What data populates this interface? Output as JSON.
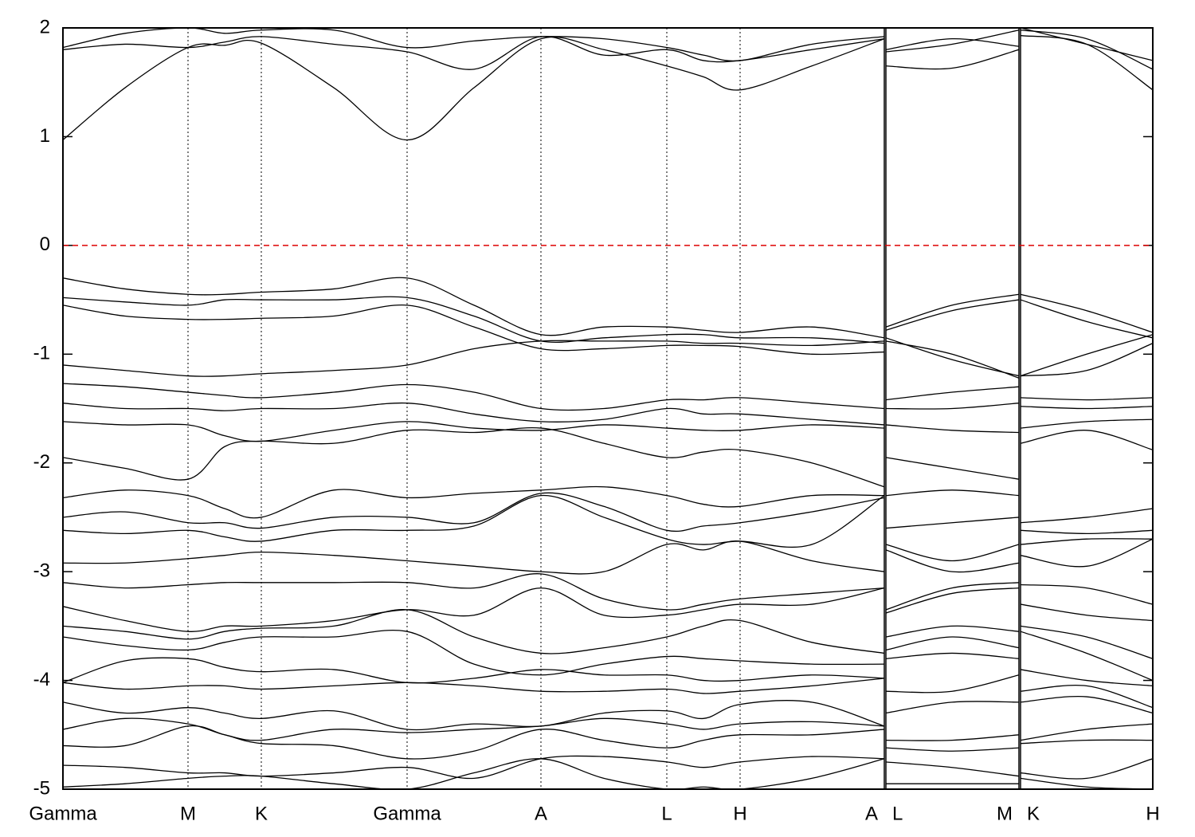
{
  "chart_data": {
    "type": "line",
    "color": "#000000",
    "fermi_line": {
      "value": 0,
      "color": "#dd0000"
    },
    "xlim": [
      0,
      1368
    ],
    "xticks": [
      {
        "value": 0,
        "label": "Gamma"
      },
      {
        "value": 157,
        "label": "M"
      },
      {
        "value": 249,
        "label": "K"
      },
      {
        "value": 432,
        "label": "Gamma"
      },
      {
        "value": 600,
        "label": "A"
      },
      {
        "value": 758,
        "label": "L"
      },
      {
        "value": 850,
        "label": "H"
      },
      {
        "value": 1031,
        "label": "A"
      },
      {
        "value": 1033,
        "label": "L"
      },
      {
        "value": 1200,
        "label": "M"
      },
      {
        "value": 1202,
        "label": "K"
      },
      {
        "value": 1368,
        "label": "H"
      }
    ],
    "ylim": [
      -5,
      2
    ],
    "yticks": [
      2,
      1,
      0,
      -1,
      -2,
      -3,
      -4,
      -5
    ],
    "x": [
      0,
      78,
      157,
      203,
      249,
      340,
      432,
      516,
      600,
      679,
      758,
      804,
      850,
      940,
      1031,
      1033,
      1116,
      1200,
      1202,
      1285,
      1368
    ],
    "series": [
      {
        "values": [
          0.97,
          1.45,
          1.82,
          1.84,
          1.86,
          1.45,
          0.97,
          1.45,
          1.9,
          1.8,
          1.65,
          1.55,
          1.43,
          1.65,
          1.9,
          1.65,
          1.63,
          1.8,
          1.93,
          1.85,
          1.43
        ]
      },
      {
        "values": [
          1.8,
          1.85,
          1.82,
          1.87,
          1.92,
          1.85,
          1.78,
          1.62,
          1.92,
          1.75,
          1.8,
          1.7,
          1.7,
          1.8,
          1.9,
          1.78,
          1.85,
          1.98,
          1.98,
          1.9,
          1.62
        ]
      },
      {
        "values": [
          1.82,
          1.95,
          2.0,
          1.95,
          1.98,
          1.98,
          1.82,
          1.88,
          1.92,
          1.9,
          1.82,
          1.75,
          1.7,
          1.85,
          1.92,
          1.8,
          1.9,
          1.83,
          2.0,
          1.85,
          1.7
        ]
      },
      {
        "values": [
          -0.3,
          -0.4,
          -0.45,
          -0.45,
          -0.43,
          -0.4,
          -0.3,
          -0.55,
          -0.82,
          -0.75,
          -0.75,
          -0.78,
          -0.8,
          -0.75,
          -0.85,
          -0.75,
          -0.55,
          -0.45,
          -0.45,
          -0.6,
          -0.8
        ]
      },
      {
        "values": [
          -0.48,
          -0.52,
          -0.55,
          -0.5,
          -0.5,
          -0.5,
          -0.48,
          -0.65,
          -0.88,
          -0.85,
          -0.82,
          -0.82,
          -0.85,
          -0.85,
          -0.9,
          -0.78,
          -0.6,
          -0.5,
          -0.5,
          -0.7,
          -0.85
        ]
      },
      {
        "values": [
          -0.55,
          -0.65,
          -0.68,
          -0.68,
          -0.67,
          -0.65,
          -0.55,
          -0.75,
          -0.95,
          -0.95,
          -0.92,
          -0.92,
          -0.93,
          -1.0,
          -0.98,
          -0.85,
          -1.05,
          -1.2,
          -1.2,
          -1.15,
          -0.9
        ]
      },
      {
        "values": [
          -1.1,
          -1.15,
          -1.2,
          -1.2,
          -1.18,
          -1.15,
          -1.1,
          -0.95,
          -0.88,
          -0.88,
          -0.88,
          -0.9,
          -0.9,
          -0.92,
          -0.88,
          -0.88,
          -1.0,
          -1.22,
          -1.2,
          -1.0,
          -0.82
        ]
      },
      {
        "values": [
          -1.27,
          -1.3,
          -1.35,
          -1.38,
          -1.4,
          -1.35,
          -1.28,
          -1.35,
          -1.5,
          -1.5,
          -1.42,
          -1.42,
          -1.4,
          -1.45,
          -1.5,
          -1.42,
          -1.35,
          -1.3,
          -1.4,
          -1.42,
          -1.4
        ]
      },
      {
        "values": [
          -1.45,
          -1.5,
          -1.5,
          -1.52,
          -1.5,
          -1.5,
          -1.45,
          -1.55,
          -1.62,
          -1.6,
          -1.5,
          -1.55,
          -1.55,
          -1.6,
          -1.65,
          -1.5,
          -1.5,
          -1.45,
          -1.48,
          -1.5,
          -1.48
        ]
      },
      {
        "values": [
          -1.62,
          -1.65,
          -1.65,
          -1.75,
          -1.8,
          -1.7,
          -1.62,
          -1.68,
          -1.7,
          -1.65,
          -1.68,
          -1.7,
          -1.7,
          -1.65,
          -1.68,
          -1.65,
          -1.7,
          -1.72,
          -1.68,
          -1.62,
          -1.6
        ]
      },
      {
        "values": [
          -1.95,
          -2.05,
          -2.15,
          -1.85,
          -1.8,
          -1.82,
          -1.7,
          -1.72,
          -1.68,
          -1.82,
          -1.95,
          -1.9,
          -1.88,
          -2.0,
          -2.22,
          -1.95,
          -2.05,
          -2.15,
          -1.82,
          -1.7,
          -1.88
        ]
      },
      {
        "values": [
          -2.32,
          -2.25,
          -2.3,
          -2.42,
          -2.5,
          -2.25,
          -2.32,
          -2.28,
          -2.25,
          -2.22,
          -2.3,
          -2.38,
          -2.4,
          -2.3,
          -2.3,
          -2.3,
          -2.25,
          -2.3,
          -2.55,
          -2.5,
          -2.42
        ]
      },
      {
        "values": [
          -2.5,
          -2.45,
          -2.55,
          -2.55,
          -2.6,
          -2.5,
          -2.5,
          -2.55,
          -2.28,
          -2.4,
          -2.62,
          -2.58,
          -2.55,
          -2.45,
          -2.32,
          -2.6,
          -2.55,
          -2.5,
          -2.62,
          -2.65,
          -2.62
        ]
      },
      {
        "values": [
          -2.62,
          -2.65,
          -2.62,
          -2.68,
          -2.72,
          -2.62,
          -2.62,
          -2.58,
          -2.3,
          -2.5,
          -2.7,
          -2.75,
          -2.72,
          -2.75,
          -2.3,
          -2.75,
          -2.9,
          -2.75,
          -2.75,
          -2.7,
          -2.7
        ]
      },
      {
        "values": [
          -2.92,
          -2.92,
          -2.88,
          -2.85,
          -2.82,
          -2.85,
          -2.9,
          -2.95,
          -3.0,
          -3.0,
          -2.75,
          -2.8,
          -2.72,
          -2.9,
          -3.0,
          -2.8,
          -3.0,
          -2.92,
          -2.85,
          -2.95,
          -2.7
        ]
      },
      {
        "values": [
          -3.1,
          -3.15,
          -3.12,
          -3.1,
          -3.1,
          -3.1,
          -3.1,
          -3.15,
          -3.02,
          -3.25,
          -3.35,
          -3.3,
          -3.25,
          -3.2,
          -3.15,
          -3.35,
          -3.15,
          -3.1,
          -3.12,
          -3.15,
          -3.3
        ]
      },
      {
        "values": [
          -3.32,
          -3.45,
          -3.55,
          -3.5,
          -3.5,
          -3.45,
          -3.35,
          -3.4,
          -3.15,
          -3.4,
          -3.4,
          -3.35,
          -3.3,
          -3.3,
          -3.15,
          -3.38,
          -3.2,
          -3.15,
          -3.3,
          -3.4,
          -3.45
        ]
      },
      {
        "values": [
          -3.5,
          -3.55,
          -3.62,
          -3.55,
          -3.52,
          -3.5,
          -3.35,
          -3.6,
          -3.75,
          -3.7,
          -3.6,
          -3.5,
          -3.45,
          -3.65,
          -3.75,
          -3.6,
          -3.5,
          -3.55,
          -3.5,
          -3.6,
          -3.8
        ]
      },
      {
        "values": [
          -3.6,
          -3.68,
          -3.72,
          -3.65,
          -3.6,
          -3.6,
          -3.55,
          -3.85,
          -3.95,
          -3.85,
          -3.78,
          -3.8,
          -3.82,
          -3.85,
          -3.85,
          -3.72,
          -3.6,
          -3.7,
          -3.55,
          -3.75,
          -4.0
        ]
      },
      {
        "values": [
          -4.02,
          -3.82,
          -3.8,
          -3.88,
          -3.92,
          -3.9,
          -4.02,
          -3.98,
          -3.9,
          -3.95,
          -3.95,
          -4.0,
          -4.0,
          -3.95,
          -3.98,
          -3.8,
          -3.75,
          -3.8,
          -3.9,
          -4.0,
          -4.05
        ]
      },
      {
        "values": [
          -4.02,
          -4.08,
          -4.05,
          -4.05,
          -4.08,
          -4.05,
          -4.02,
          -4.05,
          -4.1,
          -4.1,
          -4.08,
          -4.12,
          -4.1,
          -4.05,
          -3.98,
          -4.1,
          -4.1,
          -3.95,
          -4.1,
          -4.05,
          -4.25
        ]
      },
      {
        "values": [
          -4.2,
          -4.3,
          -4.25,
          -4.3,
          -4.35,
          -4.28,
          -4.45,
          -4.4,
          -4.42,
          -4.3,
          -4.28,
          -4.35,
          -4.22,
          -4.2,
          -4.42,
          -4.3,
          -4.2,
          -4.2,
          -4.2,
          -4.15,
          -4.3
        ]
      },
      {
        "values": [
          -4.45,
          -4.35,
          -4.4,
          -4.5,
          -4.55,
          -4.45,
          -4.48,
          -4.45,
          -4.42,
          -4.35,
          -4.4,
          -4.45,
          -4.4,
          -4.38,
          -4.42,
          -4.55,
          -4.55,
          -4.5,
          -4.55,
          -4.45,
          -4.4
        ]
      },
      {
        "values": [
          -4.6,
          -4.6,
          -4.42,
          -4.5,
          -4.58,
          -4.6,
          -4.72,
          -4.65,
          -4.45,
          -4.55,
          -4.62,
          -4.55,
          -4.5,
          -4.5,
          -4.45,
          -4.62,
          -4.65,
          -4.62,
          -4.58,
          -4.55,
          -4.55
        ]
      },
      {
        "values": [
          -4.78,
          -4.8,
          -4.85,
          -4.85,
          -4.88,
          -4.85,
          -4.8,
          -4.9,
          -4.72,
          -4.7,
          -4.75,
          -4.8,
          -4.75,
          -4.7,
          -4.72,
          -4.75,
          -4.8,
          -4.88,
          -4.85,
          -4.9,
          -4.72
        ]
      },
      {
        "values": [
          -4.98,
          -4.95,
          -4.9,
          -4.88,
          -4.88,
          -4.95,
          -5.0,
          -4.85,
          -4.72,
          -4.9,
          -5.0,
          -4.98,
          -5.0,
          -4.9,
          -4.72,
          -4.95,
          -4.95,
          -4.95,
          -4.9,
          -4.98,
          -5.0
        ]
      }
    ]
  }
}
